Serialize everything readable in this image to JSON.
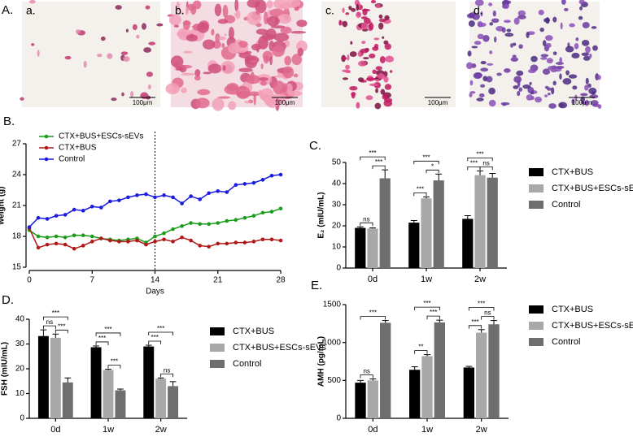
{
  "panel_label": "A.",
  "micrographs": [
    {
      "label": "a.",
      "scale": "100μm"
    },
    {
      "label": "b.",
      "scale": "100μm"
    },
    {
      "label": "c.",
      "scale": "100μm"
    },
    {
      "label": "d.",
      "scale": "100μm"
    }
  ],
  "chart_data": [
    {
      "type": "line",
      "panel": "B.",
      "xlabel": "Days",
      "ylabel": "weight (g)",
      "x": [
        0,
        1,
        2,
        3,
        4,
        5,
        6,
        7,
        8,
        9,
        10,
        11,
        12,
        13,
        14,
        15,
        16,
        17,
        18,
        19,
        20,
        21,
        22,
        23,
        24,
        25,
        26,
        27,
        28
      ],
      "xlim": [
        0,
        28
      ],
      "xticks": [
        0,
        7,
        14,
        21,
        28
      ],
      "ylim": [
        15,
        27
      ],
      "yticks": [
        15,
        18,
        21,
        24,
        27
      ],
      "vline": 14,
      "legend": "top-left",
      "series": [
        {
          "name": "CTX+BUS+ESCs-sEVs",
          "color": "#1a9c1a",
          "values": [
            18.6,
            18.0,
            17.9,
            18.0,
            17.9,
            18.1,
            18.1,
            18.0,
            17.8,
            17.7,
            17.6,
            17.7,
            17.8,
            17.4,
            18.0,
            18.3,
            18.7,
            19.0,
            19.3,
            19.2,
            19.2,
            19.3,
            19.5,
            19.6,
            19.8,
            20.0,
            20.3,
            20.4,
            20.7
          ]
        },
        {
          "name": "CTX+BUS",
          "color": "#b01818",
          "values": [
            18.8,
            16.9,
            17.2,
            17.3,
            17.2,
            16.8,
            17.1,
            17.5,
            17.8,
            17.6,
            17.5,
            17.5,
            17.6,
            17.2,
            17.5,
            17.7,
            17.5,
            17.9,
            17.6,
            17.1,
            17.0,
            17.3,
            17.3,
            17.4,
            17.4,
            17.5,
            17.7,
            17.7,
            17.6
          ]
        },
        {
          "name": "Control",
          "color": "#1a1ae0",
          "values": [
            18.9,
            19.8,
            19.7,
            20.0,
            20.1,
            20.6,
            20.5,
            20.9,
            20.8,
            21.4,
            21.5,
            21.8,
            22.0,
            22.1,
            21.8,
            22.0,
            21.8,
            21.2,
            21.9,
            21.6,
            22.2,
            22.4,
            22.3,
            23.0,
            23.1,
            23.2,
            23.5,
            23.9,
            24.0
          ]
        }
      ]
    },
    {
      "type": "bar",
      "panel": "C.",
      "ylabel": "E₂ (mIU/mL)",
      "categories": [
        "0d",
        "1w",
        "2w"
      ],
      "ylim": [
        0,
        50
      ],
      "yticks": [
        0,
        10,
        20,
        30,
        40,
        50
      ],
      "legend": "right",
      "series": [
        {
          "name": "CTX+BUS",
          "color": "#000000",
          "values": [
            19,
            21.5,
            23.3
          ],
          "errors": [
            0.5,
            1,
            1.5
          ]
        },
        {
          "name": "CTX+BUS+ESCs-sEVs",
          "color": "#a8a8a8",
          "values": [
            18.7,
            33,
            44
          ],
          "errors": [
            0.3,
            0.7,
            2
          ]
        },
        {
          "name": "Control",
          "color": "#6e6e6e",
          "values": [
            42.5,
            41.5,
            42.8
          ],
          "errors": [
            4,
            3,
            2
          ]
        }
      ],
      "brackets": [
        {
          "group": 0,
          "pair": [
            0,
            1
          ],
          "label": "ns"
        },
        {
          "group": 0,
          "pair": [
            1,
            2
          ],
          "label": "***"
        },
        {
          "group": 0,
          "pair": [
            0,
            2
          ],
          "label": "***"
        },
        {
          "group": 1,
          "pair": [
            0,
            1
          ],
          "label": "***"
        },
        {
          "group": 1,
          "pair": [
            1,
            2
          ],
          "label": "*"
        },
        {
          "group": 1,
          "pair": [
            0,
            2
          ],
          "label": "***"
        },
        {
          "group": 2,
          "pair": [
            0,
            1
          ],
          "label": "***"
        },
        {
          "group": 2,
          "pair": [
            1,
            2
          ],
          "label": "ns"
        },
        {
          "group": 2,
          "pair": [
            0,
            2
          ],
          "label": "***"
        }
      ]
    },
    {
      "type": "bar",
      "panel": "D.",
      "ylabel": "FSH (mIU/mL)",
      "categories": [
        "0d",
        "1w",
        "2w"
      ],
      "ylim": [
        0,
        40
      ],
      "yticks": [
        0,
        10,
        20,
        30,
        40
      ],
      "legend": "right",
      "series": [
        {
          "name": "CTX+BUS",
          "color": "#000000",
          "values": [
            33.2,
            28.7,
            29
          ],
          "errors": [
            2.5,
            0.5,
            0.5
          ]
        },
        {
          "name": "CTX+BUS+ESCs-sEVs",
          "color": "#a8a8a8",
          "values": [
            32.5,
            19.5,
            16
          ],
          "errors": [
            1.5,
            0.3,
            0.3
          ]
        },
        {
          "name": "Control",
          "color": "#6e6e6e",
          "values": [
            14.5,
            11.3,
            13
          ],
          "errors": [
            1.8,
            0.5,
            1.8
          ]
        }
      ],
      "brackets": [
        {
          "group": 0,
          "pair": [
            0,
            1
          ],
          "label": "ns"
        },
        {
          "group": 0,
          "pair": [
            1,
            2
          ],
          "label": "***"
        },
        {
          "group": 0,
          "pair": [
            0,
            2
          ],
          "label": "***"
        },
        {
          "group": 1,
          "pair": [
            0,
            1
          ],
          "label": "***"
        },
        {
          "group": 1,
          "pair": [
            1,
            2
          ],
          "label": "***"
        },
        {
          "group": 1,
          "pair": [
            0,
            2
          ],
          "label": "***"
        },
        {
          "group": 2,
          "pair": [
            0,
            1
          ],
          "label": "***"
        },
        {
          "group": 2,
          "pair": [
            1,
            2
          ],
          "label": "ns"
        },
        {
          "group": 2,
          "pair": [
            0,
            2
          ],
          "label": "***"
        }
      ]
    },
    {
      "type": "bar",
      "panel": "E.",
      "ylabel": "AMH (pg/mL)",
      "categories": [
        "0d",
        "1w",
        "2w"
      ],
      "ylim": [
        0,
        1500
      ],
      "yticks": [
        0,
        500,
        1000,
        1500
      ],
      "legend": "right",
      "series": [
        {
          "name": "CTX+BUS",
          "color": "#000000",
          "values": [
            470,
            640,
            670
          ],
          "errors": [
            30,
            40,
            15
          ]
        },
        {
          "name": "CTX+BUS+ESCs-sEVs",
          "color": "#a8a8a8",
          "values": [
            500,
            820,
            1130
          ],
          "errors": [
            20,
            20,
            40
          ]
        },
        {
          "name": "Control",
          "color": "#6e6e6e",
          "values": [
            1260,
            1265,
            1240
          ],
          "errors": [
            30,
            30,
            50
          ]
        }
      ],
      "brackets": [
        {
          "group": 0,
          "pair": [
            0,
            1
          ],
          "label": "ns"
        },
        {
          "group": 0,
          "pair": [
            0,
            2
          ],
          "label": "***"
        },
        {
          "group": 1,
          "pair": [
            0,
            1
          ],
          "label": "**"
        },
        {
          "group": 1,
          "pair": [
            1,
            2
          ],
          "label": "***"
        },
        {
          "group": 1,
          "pair": [
            0,
            2
          ],
          "label": "***"
        },
        {
          "group": 2,
          "pair": [
            0,
            1
          ],
          "label": "***"
        },
        {
          "group": 2,
          "pair": [
            1,
            2
          ],
          "label": "ns"
        },
        {
          "group": 2,
          "pair": [
            0,
            2
          ],
          "label": "***"
        }
      ]
    }
  ]
}
